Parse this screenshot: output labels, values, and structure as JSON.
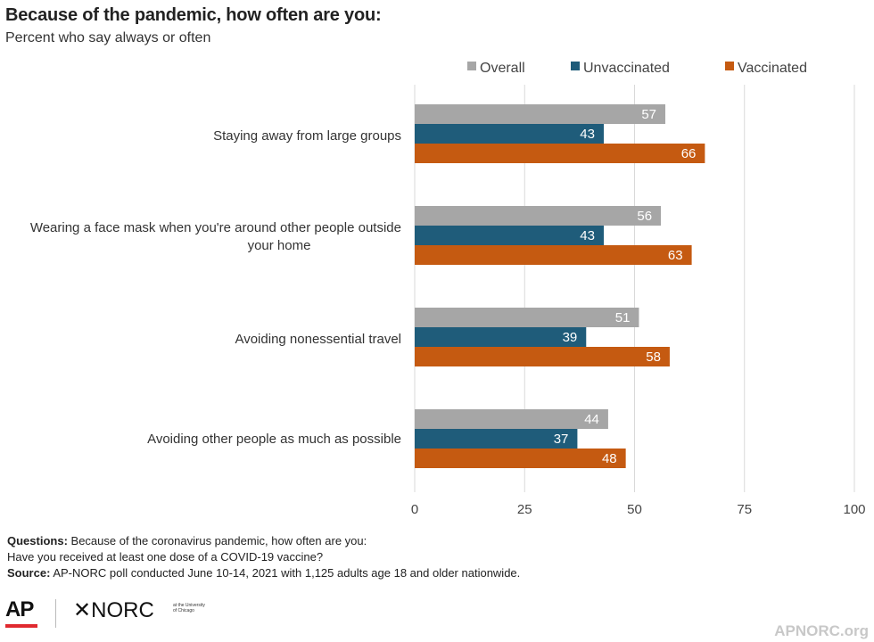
{
  "header": {
    "title": "Because of the pandemic, how often are you:",
    "subtitle": "Percent who say always or often"
  },
  "chart_data": {
    "type": "bar",
    "orientation": "horizontal",
    "categories": [
      "Staying away from large groups",
      "Wearing a face mask when you're around other people outside your home",
      "Avoiding nonessential travel",
      "Avoiding other people as much as possible"
    ],
    "series": [
      {
        "name": "Overall",
        "color": "#a6a6a6",
        "values": [
          57,
          56,
          51,
          44
        ]
      },
      {
        "name": "Unvaccinated",
        "color": "#1f5c7a",
        "values": [
          43,
          43,
          39,
          37
        ]
      },
      {
        "name": "Vaccinated",
        "color": "#c55a11",
        "values": [
          66,
          63,
          58,
          48
        ]
      }
    ],
    "xlim": [
      0,
      100
    ],
    "xticks": [
      "0",
      "25",
      "50",
      "75",
      "100"
    ],
    "grid": true,
    "legend": "top-right",
    "data_labels": true
  },
  "footer": {
    "questions_label": "Questions:",
    "questions_line1": "Because of the coronavirus pandemic, how often are you:",
    "questions_line2": "Have you received at least one dose of a COVID-19 vaccine?",
    "source_label": "Source:",
    "source_text": "AP-NORC poll conducted June 10-14, 2021 with 1,125 adults age 18 and older nationwide.",
    "logo_ap": "AP",
    "logo_norc": "✕NORC",
    "logo_norc_small": "at the University of Chicago",
    "site": "APNORC.org"
  }
}
